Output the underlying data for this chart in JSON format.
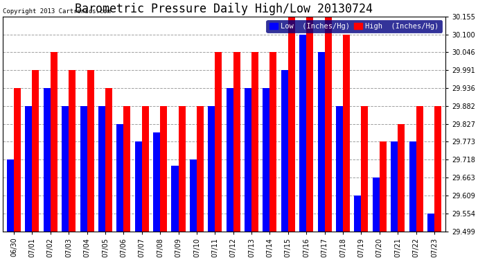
{
  "title": "Barometric Pressure Daily High/Low 20130724",
  "copyright": "Copyright 2013 Cartronics.com",
  "legend_low": "Low  (Inches/Hg)",
  "legend_high": "High  (Inches/Hg)",
  "dates": [
    "06/30",
    "07/01",
    "07/02",
    "07/03",
    "07/04",
    "07/05",
    "07/06",
    "07/07",
    "07/08",
    "07/09",
    "07/10",
    "07/11",
    "07/12",
    "07/13",
    "07/14",
    "07/15",
    "07/16",
    "07/17",
    "07/18",
    "07/19",
    "07/20",
    "07/21",
    "07/22",
    "07/23"
  ],
  "low_values": [
    29.718,
    29.882,
    29.936,
    29.882,
    29.882,
    29.882,
    29.827,
    29.773,
    29.8,
    29.7,
    29.718,
    29.882,
    29.936,
    29.936,
    29.936,
    29.991,
    30.1,
    30.046,
    29.882,
    29.609,
    29.663,
    29.773,
    29.773,
    29.554
  ],
  "high_values": [
    29.936,
    29.991,
    30.046,
    29.991,
    29.991,
    29.936,
    29.882,
    29.882,
    29.882,
    29.882,
    29.882,
    30.046,
    30.046,
    30.046,
    30.046,
    30.155,
    30.155,
    30.155,
    30.1,
    29.882,
    29.773,
    29.827,
    29.882,
    29.882
  ],
  "ymin": 29.499,
  "ymax": 30.155,
  "yticks": [
    29.499,
    29.554,
    29.609,
    29.663,
    29.718,
    29.773,
    29.827,
    29.882,
    29.936,
    29.991,
    30.046,
    30.1,
    30.155
  ],
  "low_color": "#0000ff",
  "high_color": "#ff0000",
  "bg_color": "#ffffff",
  "grid_color": "#888888",
  "bar_width": 0.38,
  "title_fontsize": 12,
  "tick_fontsize": 7,
  "legend_fontsize": 7.5,
  "figwidth": 6.9,
  "figheight": 3.75,
  "dpi": 100
}
